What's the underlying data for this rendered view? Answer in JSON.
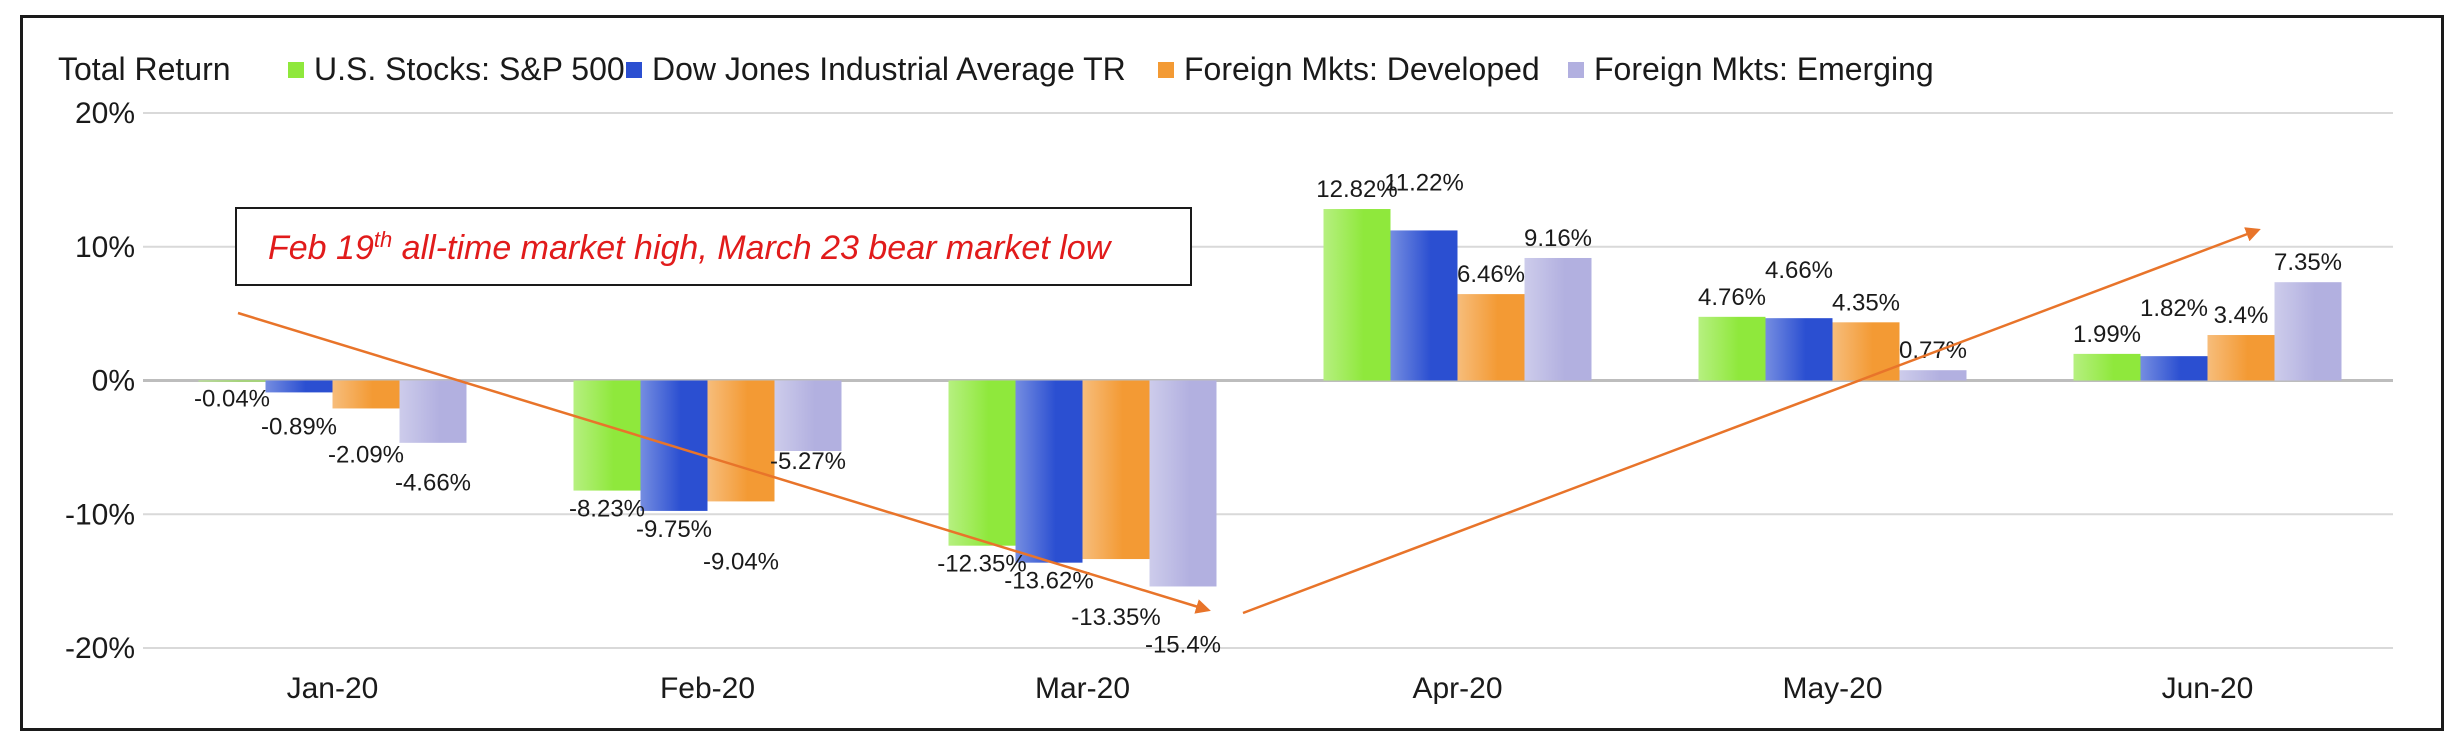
{
  "chart_data": {
    "type": "bar",
    "title": "Total Return",
    "categories": [
      "Jan-20",
      "Feb-20",
      "Mar-20",
      "Apr-20",
      "May-20",
      "Jun-20"
    ],
    "series": [
      {
        "name": "U.S. Stocks: S&P 500",
        "values": [
          -0.04,
          -8.23,
          -12.35,
          12.82,
          4.76,
          1.99
        ],
        "labels": [
          "-0.04%",
          "-8.23%",
          "-12.35%",
          "12.82%",
          "4.76%",
          "1.99%"
        ],
        "color": "#8fe83c"
      },
      {
        "name": "Dow Jones Industrial Average TR",
        "values": [
          -0.89,
          -9.75,
          -13.62,
          11.22,
          4.66,
          1.82
        ],
        "labels": [
          "-0.89%",
          "-9.75%",
          "-13.62%",
          "11.22%",
          "4.66%",
          "1.82%"
        ],
        "color": "#2b4fd1"
      },
      {
        "name": "Foreign Mkts: Developed",
        "values": [
          -2.09,
          -9.04,
          -13.35,
          6.46,
          4.35,
          3.4
        ],
        "labels": [
          "-2.09%",
          "-9.04%",
          "-13.35%",
          "6.46%",
          "4.35%",
          "3.4%"
        ],
        "color": "#f39a34"
      },
      {
        "name": "Foreign Mkts: Emerging",
        "values": [
          -4.66,
          -5.27,
          -15.4,
          9.16,
          0.77,
          7.35
        ],
        "labels": [
          "-4.66%",
          "-5.27%",
          "-15.4%",
          "9.16%",
          "0.77%",
          "7.35%"
        ],
        "color": "#b2b0e0"
      }
    ],
    "yticks": [
      "20%",
      "10%",
      "0%",
      "-10%",
      "-20%"
    ],
    "ylim": [
      -20,
      20
    ],
    "grid": true,
    "legend": "top",
    "annotation": {
      "prefix": "Feb 19",
      "sup": "th",
      "suffix": " all-time market high, March 23 bear market low",
      "color": "#e11b1b"
    },
    "arrow_color": "#e8742a"
  }
}
